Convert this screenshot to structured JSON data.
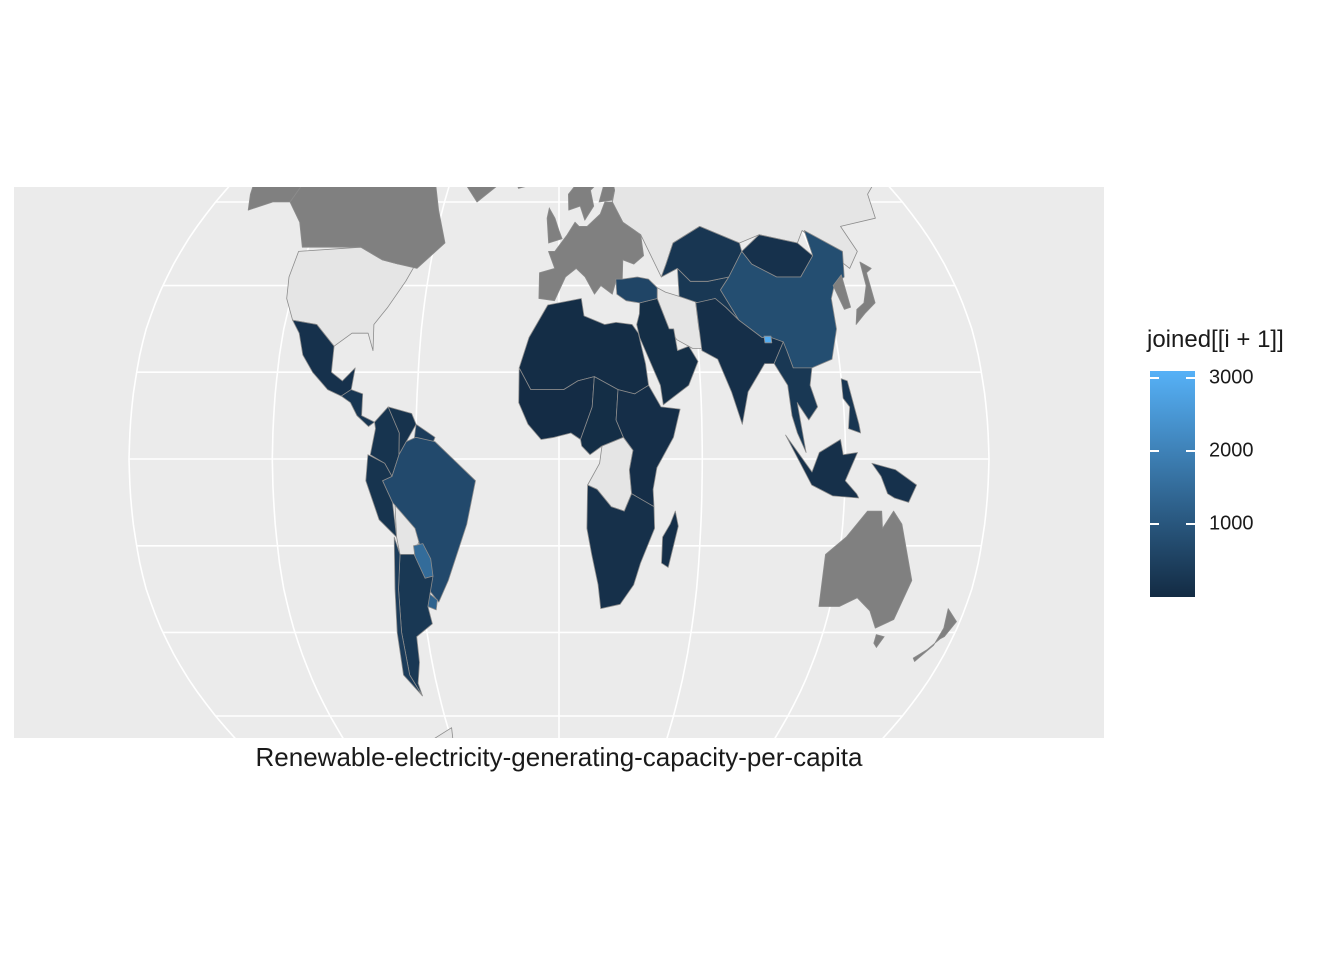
{
  "map": {
    "caption": "Renewable-electricity-generating-capacity-per-capita",
    "projection": "robinson",
    "panel_background": "#EBEBEB",
    "graticule_color": "#FFFFFF",
    "no_data_fill": "#E5E5E5",
    "excluded_fill": "#808080",
    "region_stroke": "#8C8C8C"
  },
  "legend": {
    "title": "joined[[i + 1]]",
    "placement": "right",
    "scale_low_color": "#132B43",
    "scale_high_color": "#56B1F7",
    "range": [
      0,
      3100
    ],
    "ticks": [
      {
        "value": 3000,
        "label": "3000"
      },
      {
        "value": 2000,
        "label": "2000"
      },
      {
        "value": 1000,
        "label": "1000"
      }
    ]
  },
  "chart_data": {
    "type": "choropleth",
    "value_field": "joined[[i + 1]]",
    "regions": [
      {
        "name": "Canada",
        "category": "grey"
      },
      {
        "name": "Greenland",
        "category": "grey"
      },
      {
        "name": "Alaska",
        "category": "grey"
      },
      {
        "name": "United States",
        "category": "no-data"
      },
      {
        "name": "Mexico",
        "value": 150
      },
      {
        "name": "Central America",
        "value": 250
      },
      {
        "name": "Colombia",
        "value": 200
      },
      {
        "name": "Venezuela",
        "value": 180
      },
      {
        "name": "Guianas",
        "value": 400
      },
      {
        "name": "Brazil",
        "value": 700
      },
      {
        "name": "Ecuador-Peru",
        "value": 200
      },
      {
        "name": "Bolivia",
        "category": "no-data"
      },
      {
        "name": "Paraguay",
        "value": 1500
      },
      {
        "name": "Uruguay",
        "value": 1300
      },
      {
        "name": "Argentina",
        "value": 300
      },
      {
        "name": "Chile",
        "value": 400
      },
      {
        "name": "Europe",
        "category": "grey"
      },
      {
        "name": "Scandinavia",
        "category": "grey"
      },
      {
        "name": "Iceland",
        "category": "grey"
      },
      {
        "name": "Russia",
        "category": "no-data"
      },
      {
        "name": "North Africa",
        "value": 50
      },
      {
        "name": "West Africa",
        "value": 30
      },
      {
        "name": "Central Africa",
        "value": 60
      },
      {
        "name": "DR Congo",
        "category": "no-data"
      },
      {
        "name": "East Africa",
        "value": 80
      },
      {
        "name": "Southern Africa",
        "value": 120
      },
      {
        "name": "Madagascar",
        "value": 100
      },
      {
        "name": "Middle East",
        "value": 60
      },
      {
        "name": "Turkey",
        "value": 600
      },
      {
        "name": "Iran",
        "category": "no-data"
      },
      {
        "name": "Central Asia",
        "value": 300
      },
      {
        "name": "Kazakhstan",
        "value": 250
      },
      {
        "name": "Mongolia",
        "value": 150
      },
      {
        "name": "China",
        "value": 800
      },
      {
        "name": "South Asia",
        "value": 100
      },
      {
        "name": "Bhutan",
        "value": 3000
      },
      {
        "name": "Southeast Asia",
        "value": 300
      },
      {
        "name": "Japan",
        "category": "grey"
      },
      {
        "name": "Korea",
        "category": "grey"
      },
      {
        "name": "Philippines",
        "value": 250
      },
      {
        "name": "Indonesia",
        "value": 120
      },
      {
        "name": "New Guinea",
        "value": 150
      },
      {
        "name": "Australia",
        "category": "grey"
      },
      {
        "name": "New Zealand",
        "category": "grey"
      },
      {
        "name": "Antarctica",
        "category": "no-data"
      }
    ]
  }
}
